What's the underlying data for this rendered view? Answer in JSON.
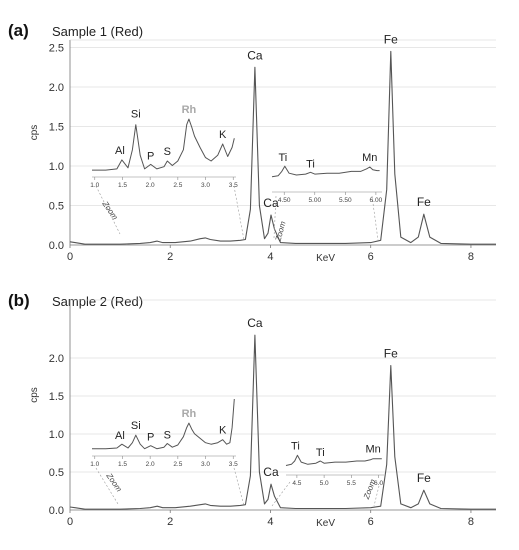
{
  "chart_data": [
    {
      "type": "line",
      "panel_label": "(a)",
      "title": "Sample 1 (Red)",
      "xlabel": "KeV",
      "ylabel": "cps",
      "xlim": [
        0,
        8.5
      ],
      "ylim": [
        0,
        2.65
      ],
      "x_ticks": [
        "0",
        "2",
        "4",
        "6",
        "8"
      ],
      "y_ticks": [
        "0.0",
        "0.5",
        "1.0",
        "1.5",
        "2.0",
        "2.5"
      ],
      "grid": "horizontal",
      "peaks": [
        {
          "label": "Ca",
          "x": 3.69,
          "y": 2.25
        },
        {
          "label": "Ca",
          "x": 4.01,
          "y": 0.38
        },
        {
          "label": "Fe",
          "x": 6.4,
          "y": 2.45
        },
        {
          "label": "Fe",
          "x": 7.06,
          "y": 0.39
        }
      ],
      "series": [
        {
          "x": [
            0,
            0.1,
            0.3,
            0.6,
            1.0,
            1.4,
            1.6,
            1.74,
            1.85,
            2.1,
            2.4,
            2.6,
            2.7,
            2.8,
            3.0,
            3.2,
            3.4,
            3.5,
            3.6,
            3.69,
            3.78,
            3.88,
            3.95,
            4.01,
            4.08,
            4.2,
            4.5,
            5.0,
            5.5,
            6.0,
            6.2,
            6.32,
            6.4,
            6.48,
            6.6,
            6.8,
            6.95,
            7.06,
            7.18,
            7.4,
            8.0,
            8.5
          ],
          "y": [
            0.04,
            0.03,
            0.01,
            0.01,
            0.01,
            0.02,
            0.03,
            0.05,
            0.03,
            0.03,
            0.05,
            0.08,
            0.09,
            0.07,
            0.05,
            0.05,
            0.06,
            0.07,
            0.45,
            2.25,
            0.5,
            0.08,
            0.15,
            0.38,
            0.2,
            0.03,
            0.02,
            0.02,
            0.02,
            0.03,
            0.06,
            0.7,
            2.45,
            0.9,
            0.1,
            0.03,
            0.1,
            0.39,
            0.1,
            0.02,
            0.01,
            0.01
          ]
        }
      ],
      "insets": [
        {
          "x_ticks": [
            "1.0",
            "1.5",
            "2.0",
            "2.5",
            "3.0",
            "3.5"
          ],
          "peaks": [
            {
              "label": "Al",
              "x": 1.49,
              "y": 1.01
            },
            {
              "label": "Si",
              "x": 1.74,
              "y": 1.32
            },
            {
              "label": "P",
              "x": 2.01,
              "y": 0.97
            },
            {
              "label": "S",
              "x": 2.31,
              "y": 1.0
            },
            {
              "label": "Rh",
              "x": 2.7,
              "y": 1.37
            },
            {
              "label": "K",
              "x": 3.31,
              "y": 1.15
            }
          ],
          "series": [
            {
              "x": [
                0.95,
                1.2,
                1.4,
                1.49,
                1.6,
                1.68,
                1.74,
                1.82,
                1.9,
                2.01,
                2.12,
                2.25,
                2.31,
                2.4,
                2.5,
                2.6,
                2.66,
                2.7,
                2.75,
                2.8,
                2.9,
                3.0,
                3.1,
                3.22,
                3.31,
                3.4,
                3.48,
                3.52
              ],
              "y": [
                0.92,
                0.92,
                0.93,
                1.01,
                0.94,
                1.1,
                1.32,
                1.05,
                0.93,
                0.97,
                0.93,
                0.95,
                1.0,
                0.96,
                1.0,
                1.1,
                1.32,
                1.37,
                1.3,
                1.22,
                1.12,
                1.03,
                1.0,
                1.05,
                1.15,
                1.04,
                1.12,
                1.2
              ]
            }
          ]
        },
        {
          "x_ticks": [
            "4.50",
            "5.00",
            "5.50",
            "6.00"
          ],
          "peaks": [
            {
              "label": "Ti",
              "x": 4.51,
              "y": 0.98
            },
            {
              "label": "Ti",
              "x": 4.93,
              "y": 0.91
            },
            {
              "label": "Mn",
              "x": 5.9,
              "y": 0.97
            }
          ],
          "series": [
            {
              "x": [
                4.3,
                4.4,
                4.46,
                4.51,
                4.58,
                4.7,
                4.85,
                4.93,
                5.0,
                5.2,
                5.4,
                5.6,
                5.75,
                5.85,
                5.9,
                5.95,
                6.02,
                6.06
              ],
              "y": [
                0.86,
                0.87,
                0.92,
                0.98,
                0.9,
                0.88,
                0.89,
                0.91,
                0.89,
                0.9,
                0.9,
                0.92,
                0.92,
                0.95,
                0.97,
                0.94,
                0.93,
                0.93
              ]
            }
          ]
        }
      ],
      "annotations": [
        "Zoom",
        "Zoom"
      ]
    },
    {
      "type": "line",
      "panel_label": "(b)",
      "title": "Sample 2 (Red)",
      "xlabel": "KeV",
      "ylabel": "cps",
      "xlim": [
        0,
        8.5
      ],
      "ylim": [
        0,
        2.35
      ],
      "x_ticks": [
        "0",
        "2",
        "4",
        "6",
        "8"
      ],
      "y_ticks": [
        "0.0",
        "0.5",
        "1.0",
        "1.5",
        "2.0"
      ],
      "grid": "horizontal",
      "peaks": [
        {
          "label": "Ca",
          "x": 3.69,
          "y": 2.3
        },
        {
          "label": "Ca",
          "x": 4.01,
          "y": 0.34
        },
        {
          "label": "Fe",
          "x": 6.4,
          "y": 1.9
        },
        {
          "label": "Fe",
          "x": 7.06,
          "y": 0.26
        }
      ],
      "series": [
        {
          "x": [
            0,
            0.1,
            0.3,
            0.6,
            1.0,
            1.4,
            1.6,
            1.74,
            1.85,
            2.1,
            2.4,
            2.6,
            2.7,
            2.8,
            3.0,
            3.2,
            3.4,
            3.5,
            3.6,
            3.69,
            3.78,
            3.88,
            3.95,
            4.01,
            4.08,
            4.2,
            4.5,
            5.0,
            5.5,
            6.0,
            6.2,
            6.32,
            6.4,
            6.48,
            6.6,
            6.8,
            6.95,
            7.06,
            7.18,
            7.4,
            8.0,
            8.5
          ],
          "y": [
            0.04,
            0.03,
            0.01,
            0.01,
            0.01,
            0.02,
            0.03,
            0.05,
            0.03,
            0.03,
            0.05,
            0.07,
            0.08,
            0.06,
            0.05,
            0.05,
            0.06,
            0.07,
            0.45,
            2.3,
            0.5,
            0.08,
            0.14,
            0.34,
            0.18,
            0.03,
            0.02,
            0.02,
            0.02,
            0.03,
            0.05,
            0.6,
            1.9,
            0.7,
            0.08,
            0.03,
            0.08,
            0.26,
            0.08,
            0.02,
            0.01,
            0.01
          ]
        }
      ],
      "insets": [
        {
          "x_ticks": [
            "1.0",
            "1.5",
            "2.0",
            "2.5",
            "3.0",
            "3.5"
          ],
          "peaks": [
            {
              "label": "Al",
              "x": 1.49,
              "y": 0.78
            },
            {
              "label": "Si",
              "x": 1.74,
              "y": 0.9
            },
            {
              "label": "P",
              "x": 2.01,
              "y": 0.76
            },
            {
              "label": "S",
              "x": 2.31,
              "y": 0.79
            },
            {
              "label": "Rh",
              "x": 2.7,
              "y": 1.06
            },
            {
              "label": "K",
              "x": 3.31,
              "y": 0.84
            }
          ],
          "series": [
            {
              "x": [
                0.95,
                1.2,
                1.4,
                1.49,
                1.6,
                1.68,
                1.74,
                1.82,
                1.9,
                2.01,
                2.12,
                2.25,
                2.31,
                2.4,
                2.5,
                2.6,
                2.66,
                2.7,
                2.75,
                2.8,
                2.9,
                3.0,
                3.1,
                3.22,
                3.31,
                3.38,
                3.44,
                3.48,
                3.52
              ],
              "y": [
                0.72,
                0.72,
                0.73,
                0.78,
                0.73,
                0.8,
                0.9,
                0.78,
                0.72,
                0.76,
                0.72,
                0.74,
                0.79,
                0.74,
                0.77,
                0.88,
                1.0,
                1.06,
                0.98,
                0.92,
                0.86,
                0.8,
                0.78,
                0.8,
                0.84,
                0.78,
                0.8,
                1.0,
                1.38
              ]
            }
          ]
        },
        {
          "x_ticks": [
            "4.5",
            "5.0",
            "5.5",
            "6.0"
          ],
          "peaks": [
            {
              "label": "Ti",
              "x": 4.51,
              "y": 0.65
            },
            {
              "label": "Ti",
              "x": 4.93,
              "y": 0.6
            },
            {
              "label": "Mn",
              "x": 5.9,
              "y": 0.62
            }
          ],
          "series": [
            {
              "x": [
                4.3,
                4.4,
                4.46,
                4.51,
                4.58,
                4.7,
                4.85,
                4.93,
                5.0,
                5.2,
                5.4,
                5.6,
                5.75,
                5.85,
                5.9,
                5.95,
                6.02,
                6.06
              ],
              "y": [
                0.56,
                0.57,
                0.6,
                0.65,
                0.59,
                0.57,
                0.58,
                0.6,
                0.58,
                0.59,
                0.59,
                0.6,
                0.6,
                0.61,
                0.62,
                0.62,
                0.62,
                0.62
              ]
            }
          ]
        }
      ],
      "annotations": [
        "Zoom",
        "Zoom"
      ]
    }
  ]
}
